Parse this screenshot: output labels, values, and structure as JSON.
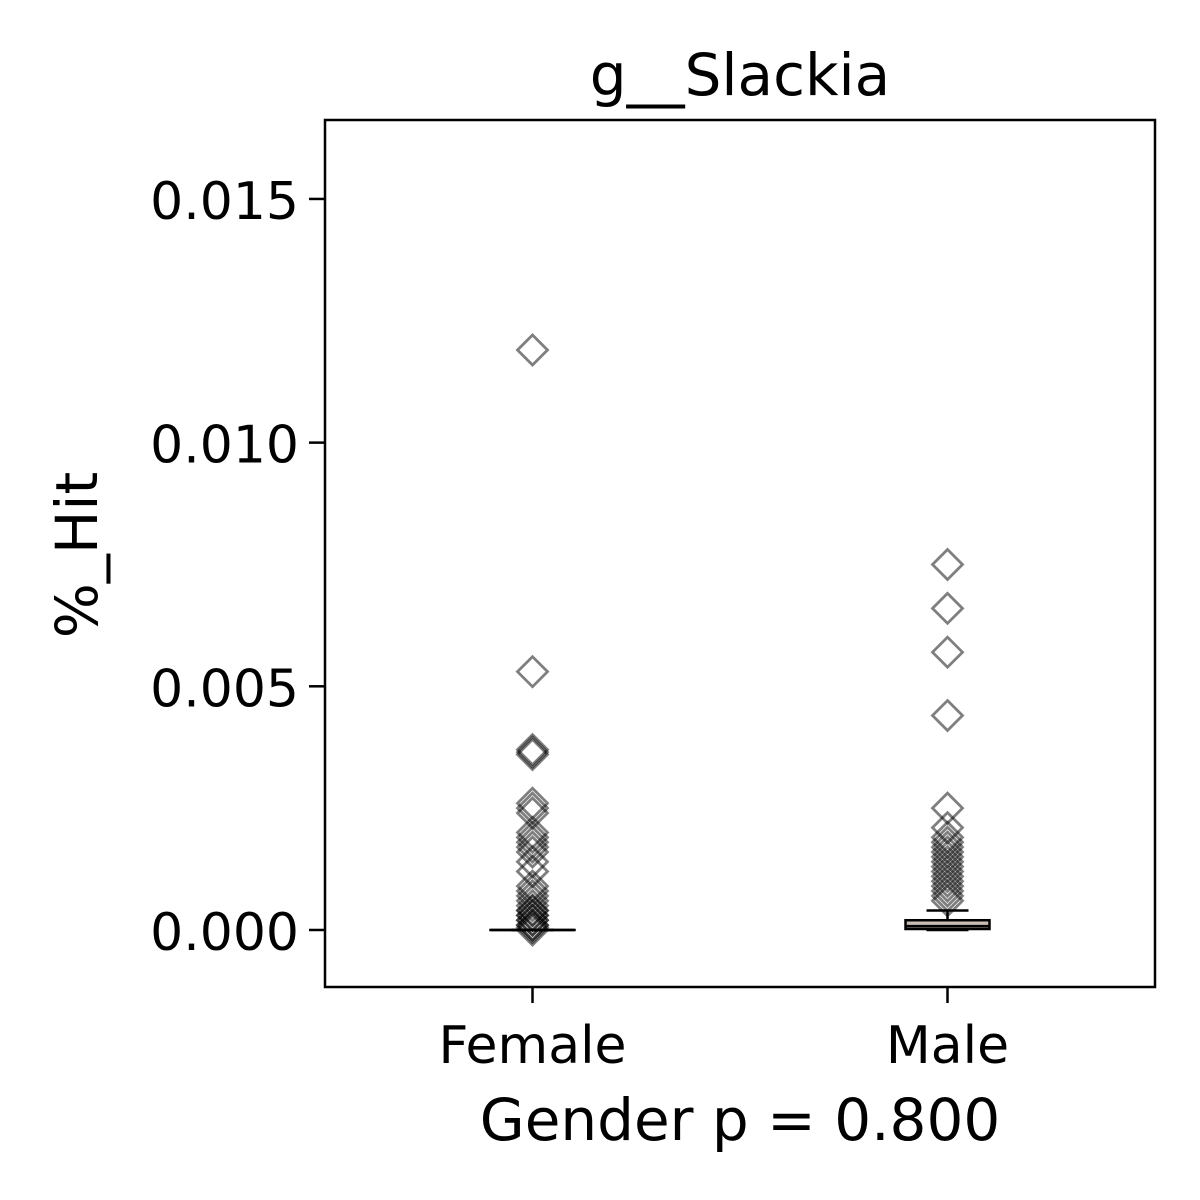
{
  "chart_data": {
    "type": "box",
    "title": "g__Slackia",
    "xlabel": "Gender p = 0.800",
    "ylabel": "%_Hit",
    "ylim": [
      -0.00117,
      0.01662
    ],
    "yticks": [
      0.0,
      0.005,
      0.01,
      0.015
    ],
    "ytick_labels": [
      "0.000",
      "0.005",
      "0.010",
      "0.015"
    ],
    "categories": [
      "Female",
      "Male"
    ],
    "grid": false,
    "colors": {
      "box_fill": "#c8bdb3",
      "box_edge": "#000000",
      "flier_edge": "#000000",
      "flier_alpha": 0.5
    },
    "boxes": [
      {
        "name": "Female",
        "q1": 0.0,
        "median": 0.0,
        "q3": 0.0,
        "whisker_low": 0.0,
        "whisker_high": 0.0,
        "fliers": [
          0.0119,
          0.0053,
          0.0037,
          0.00365,
          0.0036,
          0.0026,
          0.0025,
          0.0024,
          0.002,
          0.0019,
          0.0018,
          0.0017,
          0.0016,
          0.0014,
          0.0012,
          0.0009,
          0.0008,
          0.0007,
          0.0006,
          0.0005,
          0.0004,
          0.0004,
          0.0003,
          0.0003,
          0.0002,
          0.0002,
          0.0001,
          0.0001,
          5e-05,
          0.0
        ]
      },
      {
        "name": "Male",
        "q1": 2e-05,
        "median": 8e-05,
        "q3": 0.0002,
        "whisker_low": 0.0,
        "whisker_high": 0.0004,
        "fliers": [
          0.0075,
          0.0066,
          0.0057,
          0.0044,
          0.0025,
          0.0021,
          0.0019,
          0.0018,
          0.0017,
          0.0016,
          0.0015,
          0.0014,
          0.0013,
          0.0012,
          0.0011,
          0.001,
          0.0009,
          0.0008,
          0.0007,
          0.0006
        ]
      }
    ]
  }
}
